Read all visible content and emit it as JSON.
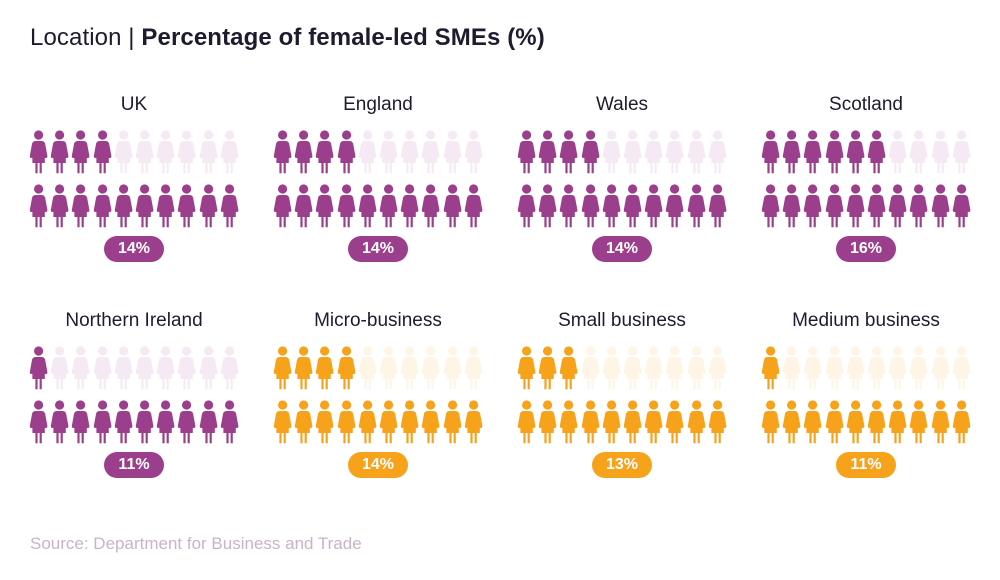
{
  "title": {
    "prefix": "Location | ",
    "main": "Percentage of female-led SMEs (%)"
  },
  "source": "Source: Department for Business and Trade",
  "colors": {
    "purple": "#9b3f8c",
    "purple_light": "#f5eaf3",
    "orange": "#f7a21b",
    "orange_light": "#fef5e6"
  },
  "icon": "female-person-icon",
  "chart_data": {
    "type": "pictogram",
    "unit": "%",
    "icons_per_panel": 20,
    "categories": [
      "UK",
      "England",
      "Wales",
      "Scotland",
      "Northern Ireland",
      "Micro-business",
      "Small business",
      "Medium business"
    ],
    "values": [
      14,
      14,
      14,
      16,
      11,
      14,
      13,
      11
    ],
    "value_labels": [
      "14%",
      "14%",
      "14%",
      "16%",
      "11%",
      "14%",
      "13%",
      "11%"
    ],
    "panels": [
      {
        "label": "UK",
        "value": 14,
        "value_label": "14%",
        "filled_icons": 4,
        "color": "purple"
      },
      {
        "label": "England",
        "value": 14,
        "value_label": "14%",
        "filled_icons": 4,
        "color": "purple"
      },
      {
        "label": "Wales",
        "value": 14,
        "value_label": "14%",
        "filled_icons": 4,
        "color": "purple"
      },
      {
        "label": "Scotland",
        "value": 16,
        "value_label": "16%",
        "filled_icons": 6,
        "color": "purple"
      },
      {
        "label": "Northern Ireland",
        "value": 11,
        "value_label": "11%",
        "filled_icons": 1,
        "color": "purple"
      },
      {
        "label": "Micro-business",
        "value": 14,
        "value_label": "14%",
        "filled_icons": 4,
        "color": "orange"
      },
      {
        "label": "Small business",
        "value": 13,
        "value_label": "13%",
        "filled_icons": 3,
        "color": "orange"
      },
      {
        "label": "Medium business",
        "value": 11,
        "value_label": "11%",
        "filled_icons": 1,
        "color": "orange"
      }
    ]
  }
}
